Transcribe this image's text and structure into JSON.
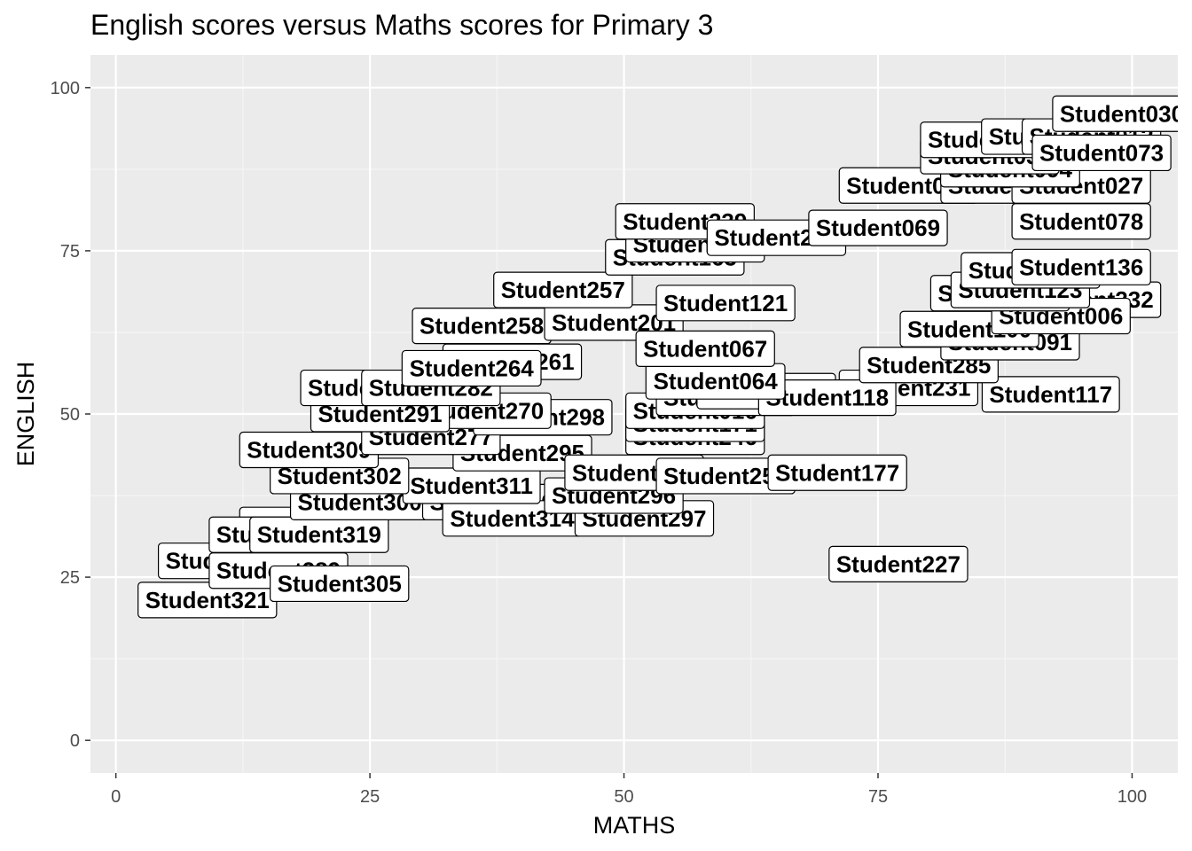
{
  "chart_data": {
    "type": "scatter",
    "title": "English scores versus Maths scores for Primary 3",
    "xlabel": "MATHS",
    "ylabel": "ENGLISH",
    "xlim": [
      -2.5,
      104.5
    ],
    "ylim": [
      -5,
      105
    ],
    "xticks": [
      0,
      25,
      50,
      75,
      100
    ],
    "yticks": [
      0,
      25,
      50,
      75,
      100
    ],
    "grid": true,
    "background": "#ebebeb",
    "label_style": "boxed text labels (geom_label)",
    "points": [
      {
        "label": "Student321",
        "x": 9,
        "y": 21.5
      },
      {
        "label": "Student318",
        "x": 11,
        "y": 27.5
      },
      {
        "label": "Student289",
        "x": 16,
        "y": 26
      },
      {
        "label": "Student305",
        "x": 22,
        "y": 24
      },
      {
        "label": "Student312",
        "x": 19,
        "y": 33
      },
      {
        "label": "Student316",
        "x": 16,
        "y": 31.5
      },
      {
        "label": "Student319",
        "x": 20,
        "y": 31.5
      },
      {
        "label": "Student300",
        "x": 24,
        "y": 36.5
      },
      {
        "label": "Student320",
        "x": 37,
        "y": 36.5
      },
      {
        "label": "Student314",
        "x": 39,
        "y": 34
      },
      {
        "label": "Student297",
        "x": 52,
        "y": 34
      },
      {
        "label": "Student296",
        "x": 49,
        "y": 37.5
      },
      {
        "label": "Student311",
        "x": 35,
        "y": 39
      },
      {
        "label": "Student302",
        "x": 22,
        "y": 40.5
      },
      {
        "label": "Student309",
        "x": 19,
        "y": 44.5
      },
      {
        "label": "Student295",
        "x": 40,
        "y": 44
      },
      {
        "label": "Student253",
        "x": 51,
        "y": 41
      },
      {
        "label": "Student259",
        "x": 60,
        "y": 40.5
      },
      {
        "label": "Student177",
        "x": 71,
        "y": 41
      },
      {
        "label": "Student227",
        "x": 77,
        "y": 27
      },
      {
        "label": "Student277",
        "x": 31,
        "y": 46.5
      },
      {
        "label": "Student246",
        "x": 57,
        "y": 46.5
      },
      {
        "label": "Student171",
        "x": 57,
        "y": 48.5
      },
      {
        "label": "Student298",
        "x": 42,
        "y": 49.5
      },
      {
        "label": "Student270",
        "x": 36,
        "y": 50.5
      },
      {
        "label": "Student291",
        "x": 26,
        "y": 50
      },
      {
        "label": "Student016",
        "x": 57,
        "y": 50.5
      },
      {
        "label": "Student280",
        "x": 25,
        "y": 54
      },
      {
        "label": "Student282",
        "x": 31,
        "y": 54
      },
      {
        "label": "Student022",
        "x": 60,
        "y": 52.5
      },
      {
        "label": "Student052",
        "x": 64,
        "y": 53.5
      },
      {
        "label": "Student231",
        "x": 78,
        "y": 54
      },
      {
        "label": "Student117",
        "x": 92,
        "y": 53
      },
      {
        "label": "Student118",
        "x": 70,
        "y": 52.5
      },
      {
        "label": "Student064",
        "x": 59,
        "y": 55
      },
      {
        "label": "Student261",
        "x": 39,
        "y": 58
      },
      {
        "label": "Student264",
        "x": 35,
        "y": 57
      },
      {
        "label": "Student285",
        "x": 80,
        "y": 57.5
      },
      {
        "label": "Student091",
        "x": 88,
        "y": 61
      },
      {
        "label": "Student100",
        "x": 84,
        "y": 63
      },
      {
        "label": "Student258",
        "x": 36,
        "y": 63.5
      },
      {
        "label": "Student201",
        "x": 49,
        "y": 64
      },
      {
        "label": "Student067",
        "x": 58,
        "y": 60
      },
      {
        "label": "Student232",
        "x": 96,
        "y": 67.5
      },
      {
        "label": "Student006",
        "x": 93,
        "y": 65
      },
      {
        "label": "Student143",
        "x": 87,
        "y": 68.5
      },
      {
        "label": "Student257",
        "x": 44,
        "y": 69
      },
      {
        "label": "Student123",
        "x": 89,
        "y": 69
      },
      {
        "label": "Student125",
        "x": 90,
        "y": 72
      },
      {
        "label": "Student136",
        "x": 95,
        "y": 72.5
      },
      {
        "label": "Student121",
        "x": 60,
        "y": 67
      },
      {
        "label": "Student165",
        "x": 55,
        "y": 74
      },
      {
        "label": "Student199",
        "x": 57,
        "y": 76
      },
      {
        "label": "Student239",
        "x": 56,
        "y": 79.5
      },
      {
        "label": "Student215",
        "x": 65,
        "y": 77
      },
      {
        "label": "Student069",
        "x": 75,
        "y": 78.5
      },
      {
        "label": "Student078",
        "x": 95,
        "y": 79.5
      },
      {
        "label": "Student060",
        "x": 78,
        "y": 85
      },
      {
        "label": "Student077",
        "x": 88,
        "y": 85
      },
      {
        "label": "Student027",
        "x": 95,
        "y": 85
      },
      {
        "label": "Student094",
        "x": 88,
        "y": 87.5
      },
      {
        "label": "Student033",
        "x": 86,
        "y": 89.5
      },
      {
        "label": "Student046",
        "x": 86,
        "y": 92
      },
      {
        "label": "Student005",
        "x": 92,
        "y": 92.5
      },
      {
        "label": "Student012",
        "x": 96,
        "y": 92.5
      },
      {
        "label": "Student030",
        "x": 99,
        "y": 96
      },
      {
        "label": "Student073",
        "x": 97,
        "y": 90
      }
    ]
  }
}
